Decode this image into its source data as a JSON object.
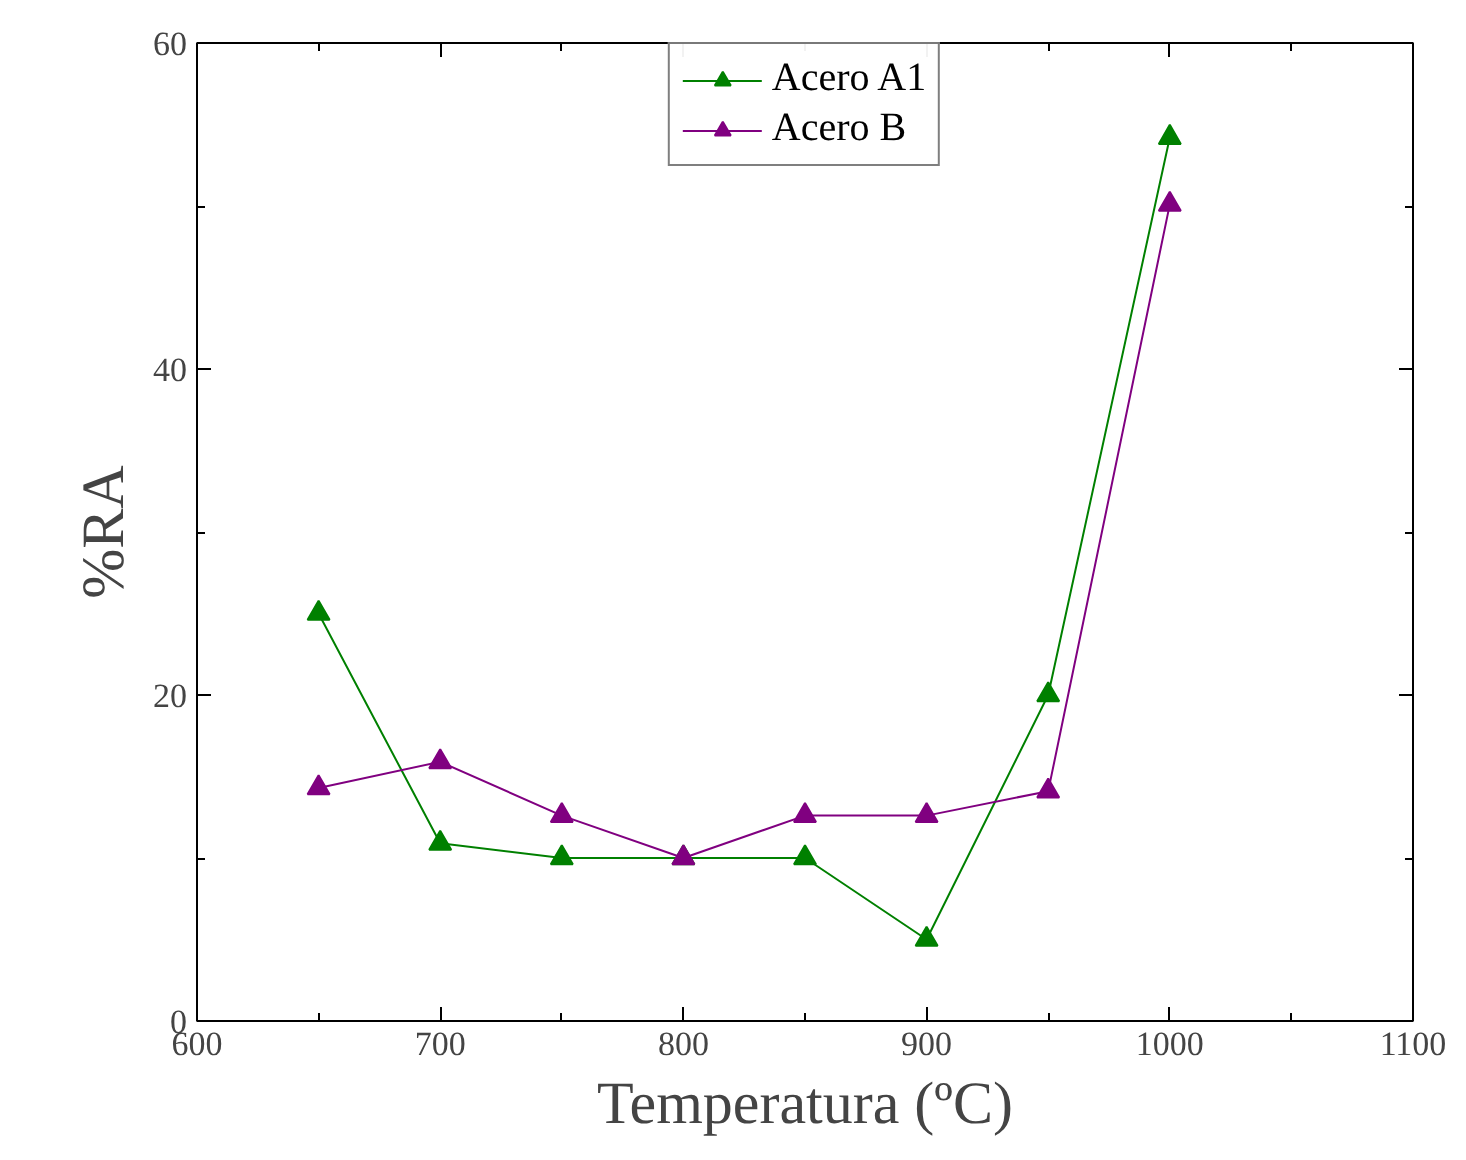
{
  "chart_data": {
    "type": "line",
    "xlabel": "Temperatura (ºC)",
    "ylabel": "%RA",
    "x": [
      650,
      700,
      750,
      800,
      850,
      900,
      950,
      1000
    ],
    "series": [
      {
        "name": "Acero A1",
        "color": "#008000",
        "values": [
          25,
          10.9,
          10,
          10,
          10,
          5,
          20,
          54.2
        ]
      },
      {
        "name": "Acero B",
        "color": "#800080",
        "values": [
          14.3,
          15.9,
          12.6,
          10,
          12.6,
          12.6,
          14.1,
          50.1
        ]
      }
    ],
    "xlim": [
      600,
      1100
    ],
    "ylim": [
      0,
      60
    ],
    "xticks": [
      600,
      700,
      800,
      900,
      1000,
      1100,
      {
        "value": 650,
        "label": null
      },
      {
        "value": 750,
        "label": null
      },
      {
        "value": 850,
        "label": null
      },
      {
        "value": 950,
        "label": null
      },
      {
        "value": 1050,
        "label": null
      }
    ],
    "yticks": [
      0,
      20,
      40,
      60,
      {
        "value": 10,
        "label": null
      },
      {
        "value": 30,
        "label": null
      },
      {
        "value": 50,
        "label": null
      }
    ],
    "marker": "triangle",
    "line_style": "solid",
    "grid": false,
    "legend": "top"
  }
}
